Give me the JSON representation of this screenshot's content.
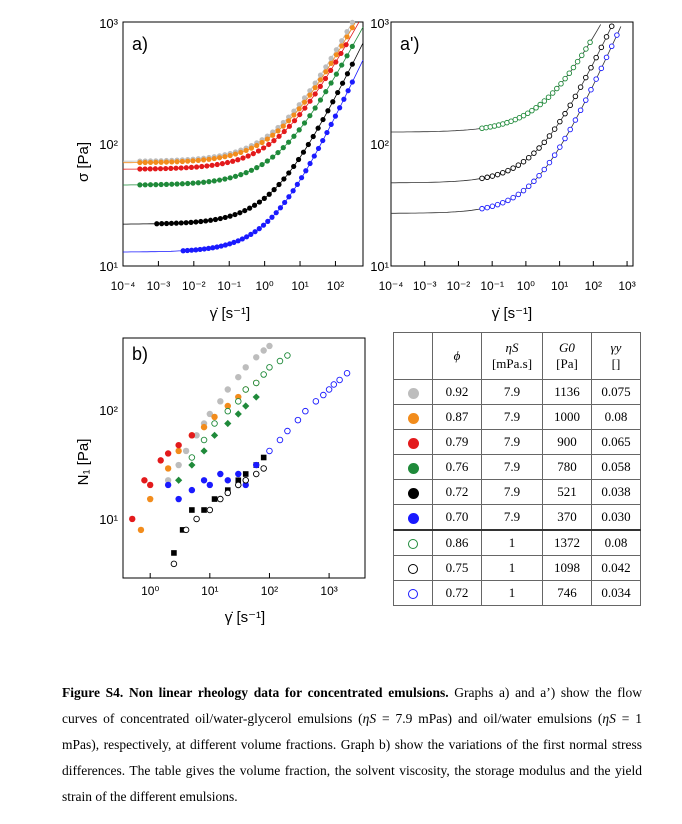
{
  "panels": {
    "a": {
      "label": "a)",
      "ylabel": "σ [Pa]",
      "xlabel": "γ̇ [s⁻¹]"
    },
    "a2": {
      "label": "a')",
      "xlabel": "γ̇ [s⁻¹]"
    },
    "b": {
      "label": "b)",
      "ylabel": "N₁ [Pa]",
      "xlabel": "γ̇ [s⁻¹]"
    }
  },
  "ticks": {
    "a_y": [
      "10³",
      "10²",
      "10¹"
    ],
    "a_x": [
      "10⁻⁴",
      "10⁻³",
      "10⁻²",
      "10⁻¹",
      "10⁰",
      "10¹",
      "10²"
    ],
    "a2_y": [
      "10³",
      "10²",
      "10¹"
    ],
    "a2_x": [
      "10⁻⁴",
      "10⁻³",
      "10⁻²",
      "10⁻¹",
      "10⁰",
      "10¹",
      "10²",
      "10³"
    ],
    "b_y": [
      "10²",
      "10¹"
    ],
    "b_x": [
      "10⁰",
      "10¹",
      "10²",
      "10³"
    ]
  },
  "table": {
    "headers": [
      "ϕ",
      "ηS",
      "[mPa.s]",
      "G0",
      "[Pa]",
      "γy",
      "[]"
    ],
    "rows": [
      {
        "marker": "filled",
        "color": "#bdbdbd",
        "phi": "0.92",
        "eta": "7.9",
        "g0": "1136",
        "gy": "0.075"
      },
      {
        "marker": "filled",
        "color": "#f28c1c",
        "phi": "0.87",
        "eta": "7.9",
        "g0": "1000",
        "gy": "0.08"
      },
      {
        "marker": "filled",
        "color": "#e31a1c",
        "phi": "0.79",
        "eta": "7.9",
        "g0": "900",
        "gy": "0.065"
      },
      {
        "marker": "filled",
        "color": "#1f8a3a",
        "phi": "0.76",
        "eta": "7.9",
        "g0": "780",
        "gy": "0.058"
      },
      {
        "marker": "filled",
        "color": "#000000",
        "phi": "0.72",
        "eta": "7.9",
        "g0": "521",
        "gy": "0.038"
      },
      {
        "marker": "filled",
        "color": "#1a1aff",
        "phi": "0.70",
        "eta": "7.9",
        "g0": "370",
        "gy": "0.030"
      },
      {
        "marker": "open",
        "color": "#1f8a3a",
        "phi": "0.86",
        "eta": "1",
        "g0": "1372",
        "gy": "0.08"
      },
      {
        "marker": "open",
        "color": "#000000",
        "phi": "0.75",
        "eta": "1",
        "g0": "1098",
        "gy": "0.042"
      },
      {
        "marker": "open",
        "color": "#1a1aff",
        "phi": "0.72",
        "eta": "1",
        "g0": "746",
        "gy": "0.034"
      }
    ]
  },
  "caption": {
    "title": "Figure S4. Non linear rheology data for concentrated emulsions.",
    "p1": " Graphs a) and a’) show the flow curves of concentrated oil/water-glycerol emulsions (",
    "eta_s": "ηS",
    "p2": " = 7.9 mPas) and oil/water emulsions (",
    "p3": " = 1 mPas), respectively, at different volume fractions. Graph b) show the variations of the first normal stress differences. The table gives the volume fraction, the solvent viscosity, the storage modulus and the yield strain of the different emulsions."
  },
  "chart_data": [
    {
      "type": "scatter",
      "panel": "a)",
      "xscale": "log",
      "yscale": "log",
      "xlim": [
        0.0001,
        600
      ],
      "ylim": [
        10,
        1000
      ],
      "xlabel": "γ̇ [s⁻¹]",
      "ylabel": "σ [Pa]",
      "series": [
        {
          "color": "#bdbdbd",
          "tau_y": 72,
          "K": 40,
          "n": 0.55,
          "x_range": [
            0.0003,
            300
          ]
        },
        {
          "color": "#f28c1c",
          "tau_y": 70,
          "K": 36,
          "n": 0.55,
          "x_range": [
            0.0003,
            300
          ]
        },
        {
          "color": "#e31a1c",
          "tau_y": 62,
          "K": 32,
          "n": 0.55,
          "x_range": [
            0.0003,
            200
          ]
        },
        {
          "color": "#1f8a3a",
          "tau_y": 46,
          "K": 24,
          "n": 0.56,
          "x_range": [
            0.0003,
            300
          ]
        },
        {
          "color": "#000000",
          "tau_y": 22,
          "K": 14,
          "n": 0.6,
          "x_range": [
            0.0009,
            300
          ]
        },
        {
          "color": "#1a1aff",
          "tau_y": 13,
          "K": 9,
          "n": 0.62,
          "x_range": [
            0.005,
            300
          ]
        }
      ]
    },
    {
      "type": "scatter",
      "panel": "a')",
      "xscale": "log",
      "yscale": "log",
      "xlim": [
        0.0001,
        1500
      ],
      "ylim": [
        10,
        1000
      ],
      "xlabel": "γ̇ [s⁻¹]",
      "series": [
        {
          "color": "#1f8a3a",
          "marker": "open",
          "tau_y": 125,
          "K": 50,
          "n": 0.55,
          "x_range": [
            0.05,
            80
          ]
        },
        {
          "color": "#000000",
          "marker": "open",
          "tau_y": 48,
          "K": 26,
          "n": 0.6,
          "x_range": [
            0.05,
            500
          ]
        },
        {
          "color": "#1a1aff",
          "marker": "open",
          "tau_y": 27,
          "K": 16,
          "n": 0.62,
          "x_range": [
            0.05,
            500
          ]
        }
      ]
    },
    {
      "type": "scatter",
      "panel": "b)",
      "xscale": "log",
      "yscale": "log",
      "xlim": [
        0.35,
        4000
      ],
      "ylim": [
        3,
        400
      ],
      "xlabel": "γ̇ [s⁻¹]",
      "ylabel": "N₁ [Pa]",
      "series": [
        {
          "color": "#bdbdbd",
          "marker": "filled",
          "x": [
            2,
            3,
            4,
            6,
            8,
            10,
            15,
            20,
            30,
            40,
            60,
            80,
            100
          ],
          "y": [
            22,
            30,
            40,
            55,
            70,
            85,
            110,
            140,
            180,
            220,
            270,
            310,
            340
          ]
        },
        {
          "color": "#f28c1c",
          "marker": "filled",
          "x": [
            0.7,
            1,
            2,
            3,
            5,
            8,
            12,
            20,
            30,
            40,
            60
          ],
          "y": [
            8,
            15,
            28,
            40,
            55,
            65,
            80,
            100,
            120,
            140,
            160
          ]
        },
        {
          "color": "#e31a1c",
          "marker": "filled",
          "x": [
            0.5,
            0.8,
            1,
            1.5,
            2,
            3,
            5
          ],
          "y": [
            10,
            22,
            20,
            33,
            38,
            45,
            55
          ]
        },
        {
          "color": "#1f8a3a",
          "marker": "diamond",
          "x": [
            3,
            5,
            8,
            12,
            20,
            30,
            40,
            60
          ],
          "y": [
            22,
            30,
            40,
            55,
            70,
            85,
            100,
            120
          ]
        },
        {
          "color": "#000000",
          "marker": "square",
          "x": [
            2.5,
            3.5,
            5,
            8,
            12,
            20,
            30,
            40,
            60,
            80
          ],
          "y": [
            5,
            8,
            12,
            12,
            15,
            18,
            22,
            25,
            30,
            35
          ]
        },
        {
          "color": "#1a1aff",
          "marker": "filled",
          "x": [
            2,
            3,
            5,
            8,
            10,
            15,
            20,
            30,
            40,
            60
          ],
          "y": [
            20,
            15,
            18,
            22,
            20,
            25,
            22,
            25,
            20,
            30
          ]
        },
        {
          "color": "#1f8a3a",
          "marker": "open",
          "x": [
            5,
            8,
            12,
            20,
            30,
            40,
            60,
            80,
            100,
            150,
            200
          ],
          "y": [
            35,
            50,
            70,
            90,
            110,
            140,
            160,
            190,
            220,
            250,
            280
          ]
        },
        {
          "color": "#000000",
          "marker": "open",
          "x": [
            2.5,
            4,
            6,
            10,
            15,
            20,
            30,
            40,
            60,
            80
          ],
          "y": [
            4,
            8,
            10,
            12,
            15,
            17,
            20,
            22,
            25,
            28
          ]
        },
        {
          "color": "#1a1aff",
          "marker": "open",
          "x": [
            100,
            150,
            200,
            300,
            400,
            600,
            800,
            1000,
            1200,
            1500,
            2000
          ],
          "y": [
            40,
            50,
            60,
            75,
            90,
            110,
            125,
            140,
            155,
            170,
            195
          ]
        }
      ]
    }
  ]
}
